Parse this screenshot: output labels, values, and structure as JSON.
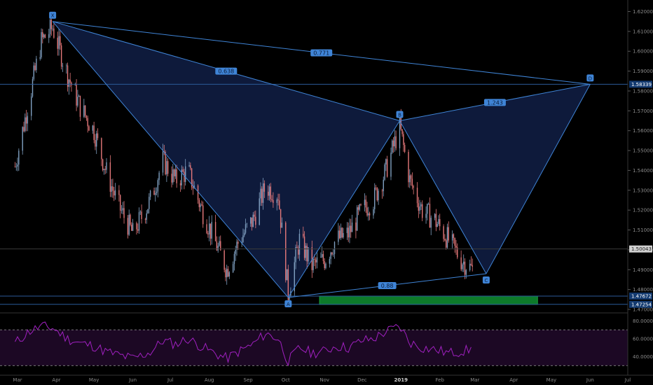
{
  "colors": {
    "background": "#000000",
    "pattern_fill": "#1a2f6b",
    "pattern_line": "#3f84d6",
    "candle_up": "#7f9fc0",
    "candle_down": "#e5787a",
    "level_line": "#2b5a99",
    "green_zone": "#0d7a2a",
    "rsi_band": "#1c0824",
    "rsi_line": "#a020c0",
    "rsi_dash": "#888888"
  },
  "price_axis": {
    "ticks": [
      "1.62000",
      "1.61000",
      "1.60000",
      "1.59000",
      "1.58000",
      "1.57000",
      "1.56000",
      "1.55000",
      "1.54000",
      "1.53000",
      "1.52000",
      "1.51000",
      "1.50000",
      "1.49000",
      "1.48000",
      "1.47000"
    ],
    "tags": [
      {
        "label": "1.58339",
        "value": 1.58339,
        "style": "dark"
      },
      {
        "label": "1.50043",
        "value": 1.50043,
        "style": "grey"
      },
      {
        "label": "1.47672",
        "value": 1.47672,
        "style": "dark"
      },
      {
        "label": "1.47254",
        "value": 1.47254,
        "style": "dark"
      }
    ]
  },
  "rsi_axis": {
    "ticks": [
      "80.0000",
      "60.0000",
      "40.0000"
    ]
  },
  "time_axis": {
    "labels": [
      "Mar",
      "Apr",
      "May",
      "Jun",
      "Jul",
      "Aug",
      "Sep",
      "Oct",
      "Nov",
      "Dec",
      "2019",
      "Feb",
      "Mar",
      "Apr",
      "May",
      "Jun",
      "Jul"
    ]
  },
  "chart_data": {
    "type": "candlestick",
    "instrument_pattern": "harmonic XABCD",
    "points": {
      "X": {
        "label": "X",
        "date": "2018-03-29",
        "price": 1.615
      },
      "A": {
        "label": "A",
        "date": "2018-10-03",
        "price": 1.476
      },
      "B": {
        "label": "B",
        "date": "2018-12-31",
        "price": 1.565
      },
      "C": {
        "label": "C",
        "date": "2019-03-10",
        "price": 1.488
      },
      "D": {
        "label": "D",
        "date": "2019-06-01",
        "price": 1.5834
      }
    },
    "ratios": [
      {
        "label": "0.638",
        "between": "XA-AB"
      },
      {
        "label": "0.771",
        "between": "XD"
      },
      {
        "label": "0.88",
        "between": "BC"
      },
      {
        "label": "1.243",
        "between": "BD"
      }
    ],
    "horizontal_levels": [
      1.58339,
      1.50043,
      1.47672,
      1.47254
    ],
    "target_zone": {
      "from": "2018-10-28",
      "to": "2019-04-20",
      "low": 1.4725,
      "high": 1.4767
    },
    "price_series": {
      "dates": [
        "2018-02-27",
        "2018-03-10",
        "2018-03-20",
        "2018-03-29",
        "2018-04-10",
        "2018-04-20",
        "2018-05-01",
        "2018-05-10",
        "2018-05-20",
        "2018-06-01",
        "2018-06-15",
        "2018-06-25",
        "2018-07-05",
        "2018-07-15",
        "2018-07-25",
        "2018-08-05",
        "2018-08-15",
        "2018-08-25",
        "2018-09-05",
        "2018-09-15",
        "2018-09-25",
        "2018-10-03",
        "2018-10-12",
        "2018-10-22",
        "2018-11-01",
        "2018-11-10",
        "2018-11-20",
        "2018-12-01",
        "2018-12-10",
        "2018-12-20",
        "2018-12-31",
        "2019-01-08",
        "2019-01-18",
        "2019-01-28",
        "2019-02-08",
        "2019-02-18",
        "2019-02-27"
      ],
      "close": [
        1.542,
        1.575,
        1.605,
        1.612,
        1.588,
        1.572,
        1.56,
        1.541,
        1.523,
        1.508,
        1.525,
        1.545,
        1.535,
        1.54,
        1.522,
        1.505,
        1.49,
        1.505,
        1.515,
        1.532,
        1.528,
        1.478,
        1.505,
        1.492,
        1.495,
        1.505,
        1.508,
        1.52,
        1.525,
        1.54,
        1.562,
        1.535,
        1.52,
        1.515,
        1.505,
        1.495,
        1.49
      ]
    },
    "rsi": {
      "levels": [
        70,
        30
      ],
      "values": [
        55,
        68,
        74,
        72,
        60,
        55,
        52,
        46,
        42,
        38,
        45,
        58,
        54,
        60,
        52,
        44,
        38,
        46,
        54,
        66,
        60,
        35,
        50,
        44,
        46,
        52,
        50,
        58,
        60,
        68,
        74,
        56,
        50,
        48,
        44,
        46,
        48
      ]
    },
    "yrange": [
      1.47,
      1.623
    ],
    "xrange": [
      "2018-02-15",
      "2019-07-01"
    ]
  }
}
